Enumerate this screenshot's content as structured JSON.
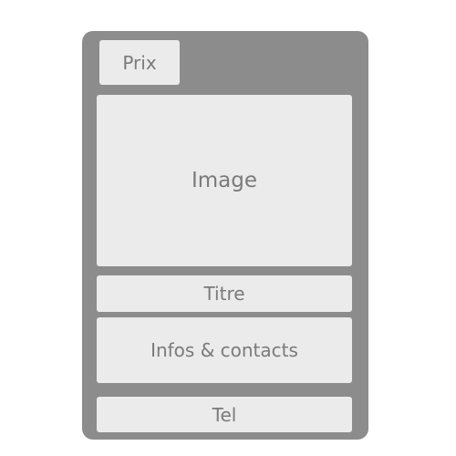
{
  "card": {
    "price_label": "Prix",
    "image_label": "Image",
    "title_label": "Titre",
    "info_label": "Infos & contacts",
    "phone_label": "Tel"
  },
  "colors": {
    "card_background": "#8c8c8c",
    "block_background": "#ebebeb",
    "text": "#7a7a7a",
    "page_background": "#ffffff"
  }
}
